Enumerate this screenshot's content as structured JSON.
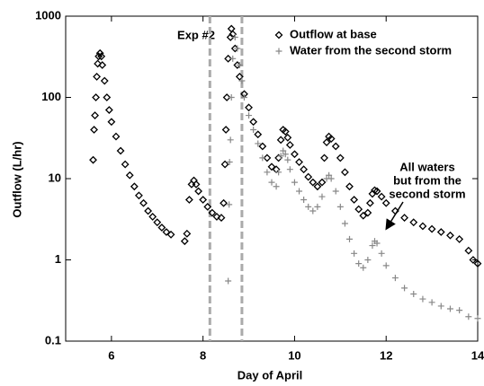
{
  "chart_data": {
    "type": "scatter",
    "x_label": "Day of April",
    "y_label": "Outflow (L/hr)",
    "xlim": [
      5,
      14
    ],
    "xticks": [
      6,
      8,
      10,
      12,
      14
    ],
    "ylim": [
      0.1,
      1000
    ],
    "yticks": [
      0.1,
      1,
      10,
      100,
      1000
    ],
    "y_log": true,
    "legend": "upper right",
    "vlines": [
      8.15,
      8.85
    ],
    "annotations": [
      "Exp #2",
      "All waters",
      "but from the",
      "second storm"
    ],
    "series": [
      {
        "name": "Outflow at base",
        "marker": "diamond",
        "color": "#000000",
        "x": [
          5.6,
          5.62,
          5.64,
          5.66,
          5.68,
          5.7,
          5.72,
          5.75,
          5.78,
          5.8,
          5.85,
          5.9,
          5.95,
          6.0,
          6.1,
          6.2,
          6.3,
          6.4,
          6.5,
          6.6,
          6.7,
          6.8,
          6.9,
          7.0,
          7.1,
          7.2,
          7.3,
          7.6,
          7.65,
          7.7,
          7.75,
          7.8,
          7.85,
          7.9,
          8.0,
          8.1,
          8.2,
          8.3,
          8.4,
          8.45,
          8.48,
          8.5,
          8.52,
          8.55,
          8.6,
          8.62,
          8.65,
          8.7,
          8.75,
          8.8,
          8.9,
          9.0,
          9.1,
          9.2,
          9.3,
          9.4,
          9.5,
          9.6,
          9.65,
          9.7,
          9.75,
          9.8,
          9.85,
          9.9,
          10.0,
          10.1,
          10.2,
          10.3,
          10.4,
          10.5,
          10.6,
          10.65,
          10.7,
          10.75,
          10.8,
          10.9,
          11.0,
          11.1,
          11.2,
          11.3,
          11.4,
          11.5,
          11.6,
          11.65,
          11.7,
          11.75,
          11.8,
          11.9,
          12.0,
          12.2,
          12.4,
          12.6,
          12.8,
          13.0,
          13.2,
          13.4,
          13.6,
          13.8,
          13.9,
          14.0
        ],
        "values": [
          17,
          40,
          60,
          100,
          180,
          260,
          320,
          350,
          320,
          250,
          160,
          100,
          70,
          50,
          33,
          22,
          15,
          11,
          8,
          6.2,
          5,
          4,
          3.4,
          2.9,
          2.5,
          2.2,
          2.05,
          1.7,
          2.1,
          5.5,
          8.5,
          9.5,
          8.5,
          7,
          5.5,
          4.5,
          3.8,
          3.4,
          3.3,
          5,
          15,
          40,
          100,
          300,
          550,
          700,
          600,
          400,
          250,
          180,
          110,
          75,
          50,
          35,
          25,
          18,
          14,
          13,
          18,
          30,
          40,
          38,
          32,
          26,
          20,
          16,
          13,
          10.5,
          9,
          8,
          9,
          18,
          28,
          33,
          31,
          25,
          18,
          12,
          8,
          5.5,
          4.2,
          3.5,
          3.8,
          5,
          6.5,
          7.2,
          7,
          6,
          5,
          4,
          3.3,
          2.9,
          2.6,
          2.4,
          2.2,
          2.0,
          1.8,
          1.3,
          1.0,
          0.9
        ]
      },
      {
        "name": "Water from the second storm",
        "marker": "plus",
        "color": "#888888",
        "x": [
          8.55,
          8.57,
          8.58,
          8.6,
          8.62,
          8.65,
          8.7,
          8.75,
          8.8,
          8.85,
          8.9,
          9.0,
          9.1,
          9.2,
          9.3,
          9.4,
          9.5,
          9.6,
          9.65,
          9.7,
          9.75,
          9.8,
          9.85,
          9.9,
          10.0,
          10.1,
          10.2,
          10.3,
          10.4,
          10.5,
          10.6,
          10.7,
          10.75,
          10.8,
          10.9,
          11.0,
          11.1,
          11.2,
          11.3,
          11.4,
          11.5,
          11.6,
          11.7,
          11.75,
          11.8,
          11.9,
          12.0,
          12.2,
          12.4,
          12.6,
          12.8,
          13.0,
          13.2,
          13.4,
          13.6,
          13.8,
          14.0
        ],
        "values": [
          0.55,
          4.8,
          16,
          30,
          100,
          300,
          550,
          400,
          250,
          160,
          100,
          60,
          40,
          27,
          18,
          12,
          9,
          8,
          12,
          19,
          22,
          20,
          17,
          13,
          9,
          7,
          5.5,
          4.5,
          4,
          4.5,
          6,
          10,
          11,
          10,
          7,
          4.5,
          2.8,
          1.8,
          1.2,
          0.9,
          0.8,
          1.0,
          1.5,
          1.7,
          1.6,
          1.2,
          0.85,
          0.6,
          0.45,
          0.38,
          0.33,
          0.3,
          0.27,
          0.25,
          0.24,
          0.2,
          0.19
        ]
      }
    ]
  }
}
